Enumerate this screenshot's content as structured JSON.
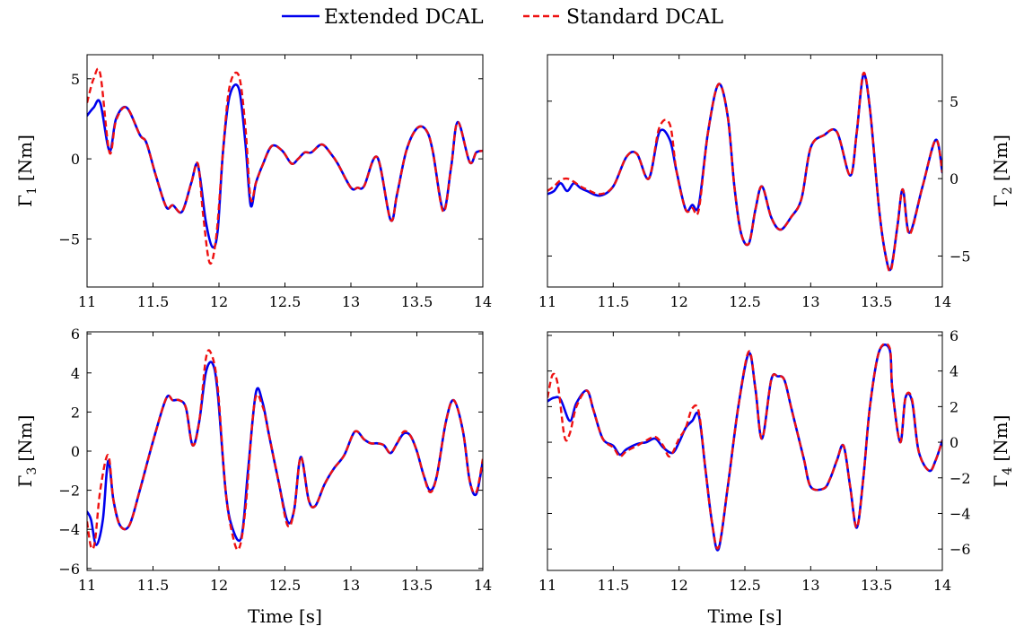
{
  "legend": {
    "placement": "top-center",
    "entries": [
      {
        "label": "Extended DCAL",
        "color": "#0000ee",
        "style": "solid"
      },
      {
        "label": "Standard DCAL",
        "color": "#ee1111",
        "style": "dashed"
      }
    ]
  },
  "chart_data": [
    {
      "type": "line",
      "ylabel": "Γ",
      "ylabel_sub": "1",
      "ylabel_unit": "[Nm]",
      "xlabel": "",
      "ylabel_side": "left",
      "xlim": [
        11,
        14
      ],
      "ylim": [
        -8,
        6.5
      ],
      "xticks": [
        11,
        11.5,
        12,
        12.5,
        13,
        13.5,
        14
      ],
      "xtick_labels": [
        "11",
        "11.5",
        "12",
        "12.5",
        "13",
        "13.5",
        "14"
      ],
      "yticks": [
        -5,
        0,
        5
      ],
      "ytick_labels": [
        "−5",
        "0",
        "5"
      ],
      "series": [
        {
          "name": "Extended DCAL",
          "x": [
            11,
            11.05,
            11.1,
            11.17,
            11.22,
            11.3,
            11.4,
            11.45,
            11.52,
            11.6,
            11.65,
            11.72,
            11.79,
            11.84,
            11.9,
            11.95,
            11.99,
            12.03,
            12.08,
            12.15,
            12.2,
            12.24,
            12.28,
            12.33,
            12.4,
            12.48,
            12.55,
            12.6,
            12.65,
            12.7,
            12.78,
            12.85,
            12.9,
            13.0,
            13.05,
            13.1,
            13.2,
            13.3,
            13.35,
            13.42,
            13.5,
            13.57,
            13.62,
            13.7,
            13.76,
            13.81,
            13.9,
            13.95,
            14.0
          ],
          "y": [
            2.7,
            3.2,
            3.5,
            0.5,
            2.5,
            3.2,
            1.5,
            1.0,
            -1.0,
            -3.0,
            -2.9,
            -3.3,
            -1.5,
            -0.4,
            -3.9,
            -5.5,
            -4.5,
            0.4,
            3.9,
            4.4,
            1.0,
            -2.9,
            -1.5,
            -0.4,
            0.8,
            0.5,
            -0.3,
            0.0,
            0.4,
            0.4,
            0.9,
            0.3,
            -0.3,
            -1.8,
            -1.8,
            -1.7,
            0.1,
            -3.8,
            -2.2,
            0.5,
            1.9,
            1.8,
            0.5,
            -3.2,
            -0.5,
            2.3,
            -0.2,
            0.4,
            0.5
          ]
        },
        {
          "name": "Standard DCAL",
          "x": [
            11,
            11.05,
            11.1,
            11.17,
            11.22,
            11.3,
            11.4,
            11.45,
            11.52,
            11.6,
            11.65,
            11.72,
            11.79,
            11.84,
            11.88,
            11.93,
            11.98,
            12.03,
            12.08,
            12.15,
            12.2,
            12.24,
            12.28,
            12.33,
            12.4,
            12.48,
            12.55,
            12.6,
            12.65,
            12.7,
            12.78,
            12.85,
            12.9,
            13.0,
            13.05,
            13.1,
            13.2,
            13.3,
            13.35,
            13.42,
            13.5,
            13.57,
            13.62,
            13.7,
            13.76,
            13.81,
            13.9,
            13.95,
            14.0
          ],
          "y": [
            3.5,
            5.0,
            5.3,
            0.4,
            2.4,
            3.2,
            1.5,
            1.0,
            -1.0,
            -3.0,
            -2.9,
            -3.3,
            -1.5,
            -0.3,
            -3.5,
            -6.5,
            -4.8,
            0.4,
            4.5,
            5.2,
            2.0,
            -2.5,
            -1.5,
            -0.4,
            0.8,
            0.5,
            -0.3,
            0.0,
            0.4,
            0.4,
            0.9,
            0.3,
            -0.3,
            -1.8,
            -1.8,
            -1.7,
            0.1,
            -3.8,
            -2.2,
            0.5,
            1.9,
            1.8,
            0.5,
            -3.3,
            -0.5,
            2.3,
            -0.2,
            0.4,
            0.5
          ]
        }
      ]
    },
    {
      "type": "line",
      "ylabel": "Γ",
      "ylabel_sub": "2",
      "ylabel_unit": "[Nm]",
      "xlabel": "",
      "ylabel_side": "right",
      "xlim": [
        11,
        14
      ],
      "ylim": [
        -7,
        8
      ],
      "xticks": [
        11,
        11.5,
        12,
        12.5,
        13,
        13.5,
        14
      ],
      "xtick_labels": [
        "11",
        "11.5",
        "12",
        "12.5",
        "13",
        "13.5",
        "14"
      ],
      "yticks": [
        -5,
        0,
        5
      ],
      "ytick_labels": [
        "−5",
        "0",
        "5"
      ],
      "series": [
        {
          "name": "Extended DCAL",
          "x": [
            11,
            11.05,
            11.1,
            11.15,
            11.2,
            11.25,
            11.3,
            11.4,
            11.5,
            11.6,
            11.68,
            11.77,
            11.85,
            11.93,
            11.98,
            12.05,
            12.1,
            12.15,
            12.22,
            12.3,
            12.37,
            12.42,
            12.47,
            12.53,
            12.58,
            12.63,
            12.7,
            12.77,
            12.85,
            12.93,
            13.0,
            13.1,
            13.2,
            13.3,
            13.35,
            13.4,
            13.45,
            13.52,
            13.57,
            13.61,
            13.66,
            13.7,
            13.75,
            13.85,
            13.95,
            14.0
          ],
          "y": [
            -1.0,
            -0.8,
            -0.3,
            -0.8,
            -0.3,
            -0.6,
            -0.8,
            -1.1,
            -0.5,
            1.4,
            1.6,
            0.0,
            3.0,
            2.5,
            0.5,
            -2.0,
            -1.7,
            -1.7,
            3.0,
            6.1,
            4.0,
            -0.5,
            -3.5,
            -4.2,
            -2.0,
            -0.5,
            -2.5,
            -3.3,
            -2.5,
            -1.3,
            2.0,
            2.8,
            3.0,
            0.2,
            3.0,
            6.7,
            4.5,
            -2.0,
            -5.0,
            -5.8,
            -3.0,
            -0.7,
            -3.5,
            -0.5,
            2.5,
            0.4
          ]
        },
        {
          "name": "Standard DCAL",
          "x": [
            11,
            11.05,
            11.1,
            11.15,
            11.2,
            11.25,
            11.3,
            11.4,
            11.5,
            11.6,
            11.68,
            11.77,
            11.85,
            11.93,
            11.98,
            12.05,
            12.1,
            12.15,
            12.22,
            12.3,
            12.37,
            12.42,
            12.47,
            12.53,
            12.58,
            12.63,
            12.7,
            12.77,
            12.85,
            12.93,
            13.0,
            13.1,
            13.2,
            13.3,
            13.35,
            13.4,
            13.45,
            13.52,
            13.57,
            13.61,
            13.66,
            13.7,
            13.75,
            13.85,
            13.95,
            14.0
          ],
          "y": [
            -0.8,
            -0.5,
            -0.1,
            0.0,
            -0.2,
            -0.5,
            -0.7,
            -1.0,
            -0.5,
            1.4,
            1.6,
            0.0,
            3.3,
            3.5,
            0.5,
            -2.0,
            -1.9,
            -2.0,
            3.0,
            6.1,
            4.0,
            -0.5,
            -3.5,
            -4.2,
            -2.0,
            -0.5,
            -2.5,
            -3.3,
            -2.5,
            -1.3,
            2.0,
            2.8,
            3.0,
            0.2,
            3.0,
            6.8,
            4.5,
            -2.0,
            -5.0,
            -5.9,
            -3.0,
            -0.7,
            -3.6,
            -0.5,
            2.5,
            0.4
          ]
        }
      ]
    },
    {
      "type": "line",
      "ylabel": "Γ",
      "ylabel_sub": "3",
      "ylabel_unit": "[Nm]",
      "xlabel": "Time [s]",
      "ylabel_side": "left",
      "xlim": [
        11,
        14
      ],
      "ylim": [
        -6.1,
        6.1
      ],
      "xticks": [
        11,
        11.5,
        12,
        12.5,
        13,
        13.5,
        14
      ],
      "xtick_labels": [
        "11",
        "11.5",
        "12",
        "12.5",
        "13",
        "13.5",
        "14"
      ],
      "yticks": [
        -6,
        -4,
        -2,
        0,
        2,
        4,
        6
      ],
      "ytick_labels": [
        "−6",
        "−4",
        "−2",
        "0",
        "2",
        "4",
        "6"
      ],
      "series": [
        {
          "name": "Extended DCAL",
          "x": [
            11,
            11.03,
            11.07,
            11.12,
            11.16,
            11.2,
            11.25,
            11.32,
            11.4,
            11.5,
            11.6,
            11.65,
            11.7,
            11.75,
            11.8,
            11.85,
            11.9,
            11.95,
            11.99,
            12.05,
            12.1,
            12.17,
            12.22,
            12.28,
            12.33,
            12.38,
            12.45,
            12.52,
            12.57,
            12.62,
            12.68,
            12.73,
            12.8,
            12.87,
            12.95,
            13.03,
            13.1,
            13.15,
            13.2,
            13.25,
            13.3,
            13.35,
            13.4,
            13.45,
            13.5,
            13.55,
            13.6,
            13.65,
            13.72,
            13.78,
            13.85,
            13.9,
            13.95,
            14.0
          ],
          "y": [
            -3.1,
            -3.5,
            -4.8,
            -3.5,
            -0.5,
            -2.5,
            -3.8,
            -3.8,
            -2.0,
            0.5,
            2.7,
            2.6,
            2.6,
            2.2,
            0.3,
            1.5,
            4.0,
            4.5,
            3.0,
            -2.0,
            -3.9,
            -4.4,
            -1.0,
            3.0,
            2.5,
            0.8,
            -1.5,
            -3.6,
            -3.0,
            -0.3,
            -2.5,
            -2.8,
            -1.7,
            -0.9,
            -0.2,
            1.0,
            0.6,
            0.4,
            0.4,
            0.3,
            -0.1,
            0.4,
            0.9,
            0.8,
            0.0,
            -1.2,
            -2.0,
            -1.3,
            1.5,
            2.6,
            1.0,
            -1.5,
            -2.2,
            -0.5
          ]
        },
        {
          "name": "Standard DCAL",
          "x": [
            11,
            11.03,
            11.06,
            11.1,
            11.16,
            11.2,
            11.25,
            11.32,
            11.4,
            11.5,
            11.6,
            11.65,
            11.7,
            11.75,
            11.8,
            11.85,
            11.9,
            11.94,
            11.99,
            12.05,
            12.1,
            12.15,
            12.2,
            12.27,
            12.33,
            12.38,
            12.45,
            12.52,
            12.57,
            12.62,
            12.68,
            12.73,
            12.8,
            12.87,
            12.95,
            13.03,
            13.1,
            13.15,
            13.2,
            13.25,
            13.3,
            13.35,
            13.4,
            13.45,
            13.5,
            13.55,
            13.6,
            13.65,
            13.72,
            13.78,
            13.85,
            13.9,
            13.95,
            14.0
          ],
          "y": [
            -3.6,
            -4.9,
            -4.6,
            -2.0,
            -0.2,
            -2.5,
            -3.8,
            -3.8,
            -2.0,
            0.5,
            2.7,
            2.6,
            2.6,
            2.2,
            0.3,
            1.5,
            4.7,
            5.0,
            3.3,
            -2.0,
            -4.2,
            -5.0,
            -3.0,
            2.5,
            2.3,
            0.8,
            -1.5,
            -3.8,
            -3.0,
            -0.3,
            -2.5,
            -2.8,
            -1.7,
            -0.9,
            -0.2,
            1.0,
            0.6,
            0.4,
            0.4,
            0.3,
            -0.1,
            0.4,
            1.0,
            0.8,
            0.0,
            -1.2,
            -2.1,
            -1.3,
            1.5,
            2.6,
            1.0,
            -1.5,
            -2.1,
            -0.4
          ]
        }
      ]
    },
    {
      "type": "line",
      "ylabel": "Γ",
      "ylabel_sub": "4",
      "ylabel_unit": "[Nm]",
      "xlabel": "Time [s]",
      "ylabel_side": "right",
      "xlim": [
        11,
        14
      ],
      "ylim": [
        -7.2,
        6.2
      ],
      "xticks": [
        11,
        11.5,
        12,
        12.5,
        13,
        13.5,
        14
      ],
      "xtick_labels": [
        "11",
        "11.5",
        "12",
        "12.5",
        "13",
        "13.5",
        "14"
      ],
      "yticks": [
        -6,
        -4,
        -2,
        0,
        2,
        4,
        6
      ],
      "ytick_labels": [
        "−6",
        "−4",
        "−2",
        "0",
        "2",
        "4",
        "6"
      ],
      "series": [
        {
          "name": "Extended DCAL",
          "x": [
            11,
            11.05,
            11.1,
            11.17,
            11.22,
            11.3,
            11.35,
            11.42,
            11.5,
            11.55,
            11.6,
            11.68,
            11.75,
            11.82,
            11.88,
            11.95,
            12.0,
            12.05,
            12.1,
            12.15,
            12.2,
            12.25,
            12.3,
            12.37,
            12.45,
            12.53,
            12.58,
            12.63,
            12.7,
            12.75,
            12.8,
            12.85,
            12.9,
            12.95,
            13.0,
            13.1,
            13.15,
            13.2,
            13.25,
            13.3,
            13.35,
            13.4,
            13.45,
            13.52,
            13.6,
            13.62,
            13.68,
            13.72,
            13.77,
            13.82,
            13.9,
            13.95,
            14.0
          ],
          "y": [
            2.3,
            2.5,
            2.4,
            1.2,
            2.2,
            2.9,
            1.8,
            0.2,
            -0.2,
            -0.7,
            -0.4,
            -0.1,
            0.0,
            0.2,
            -0.3,
            -0.6,
            0.0,
            0.8,
            1.2,
            1.5,
            -1.5,
            -4.5,
            -6.0,
            -2.5,
            2.0,
            5.0,
            3.0,
            0.2,
            3.5,
            3.7,
            3.5,
            2.0,
            0.5,
            -1.0,
            -2.5,
            -2.6,
            -2.0,
            -1.0,
            -0.2,
            -2.5,
            -4.8,
            -2.0,
            2.0,
            5.1,
            5.2,
            3.0,
            0.0,
            2.5,
            2.3,
            -0.5,
            -1.6,
            -1.0,
            0.1
          ]
        },
        {
          "name": "Standard DCAL",
          "x": [
            11,
            11.04,
            11.08,
            11.13,
            11.17,
            11.22,
            11.3,
            11.35,
            11.42,
            11.5,
            11.55,
            11.6,
            11.68,
            11.75,
            11.82,
            11.88,
            11.93,
            12.0,
            12.05,
            12.1,
            12.15,
            12.2,
            12.25,
            12.3,
            12.37,
            12.45,
            12.53,
            12.58,
            12.63,
            12.7,
            12.75,
            12.8,
            12.85,
            12.9,
            12.95,
            13.0,
            13.1,
            13.15,
            13.2,
            13.25,
            13.3,
            13.35,
            13.4,
            13.45,
            13.52,
            13.6,
            13.62,
            13.68,
            13.72,
            13.77,
            13.82,
            13.9,
            13.95,
            14.0
          ],
          "y": [
            2.5,
            3.8,
            3.2,
            0.3,
            0.5,
            2.0,
            2.9,
            1.8,
            0.2,
            -0.3,
            -0.8,
            -0.5,
            -0.2,
            0.1,
            0.3,
            -0.2,
            -0.8,
            0.2,
            0.8,
            1.9,
            1.7,
            -1.5,
            -4.5,
            -5.9,
            -2.5,
            2.0,
            5.1,
            3.0,
            0.2,
            3.5,
            3.7,
            3.5,
            2.0,
            0.5,
            -1.0,
            -2.5,
            -2.6,
            -2.0,
            -1.0,
            -0.2,
            -2.5,
            -4.8,
            -2.0,
            2.0,
            5.1,
            5.3,
            3.0,
            0.0,
            2.5,
            2.4,
            -0.5,
            -1.6,
            -1.0,
            0.1
          ]
        }
      ]
    }
  ]
}
